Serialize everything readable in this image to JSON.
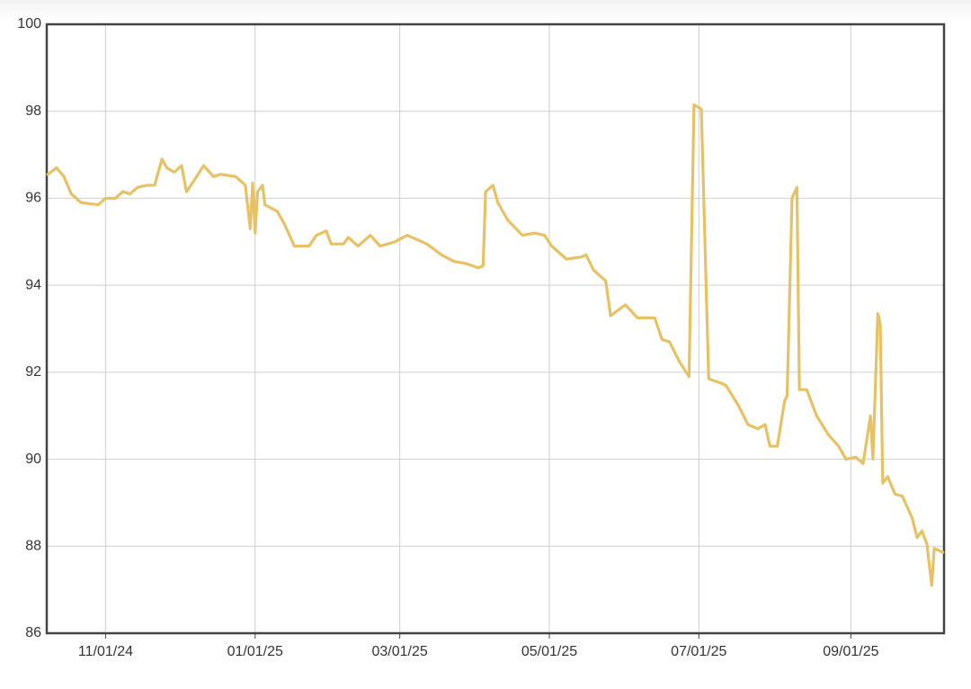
{
  "chart_data": {
    "type": "line",
    "x": [
      "2024-10-08",
      "2024-10-12",
      "2024-10-15",
      "2024-10-18",
      "2024-10-22",
      "2024-10-29",
      "2024-11-01",
      "2024-11-05",
      "2024-11-08",
      "2024-11-11",
      "2024-11-14",
      "2024-11-18",
      "2024-11-21",
      "2024-11-24",
      "2024-11-26",
      "2024-11-29",
      "2024-12-02",
      "2024-12-04",
      "2024-12-07",
      "2024-12-11",
      "2024-12-15",
      "2024-12-18",
      "2024-12-24",
      "2024-12-28",
      "2024-12-30",
      "2024-12-31",
      "2025-01-01",
      "2025-01-02",
      "2025-01-04",
      "2025-01-05",
      "2025-01-10",
      "2025-01-13",
      "2025-01-17",
      "2025-01-23",
      "2025-01-26",
      "2025-01-30",
      "2025-02-01",
      "2025-02-06",
      "2025-02-08",
      "2025-02-12",
      "2025-02-17",
      "2025-02-21",
      "2025-02-27",
      "2025-03-04",
      "2025-03-08",
      "2025-03-12",
      "2025-03-18",
      "2025-03-23",
      "2025-03-28",
      "2025-04-02",
      "2025-04-04",
      "2025-04-05",
      "2025-04-08",
      "2025-04-10",
      "2025-04-14",
      "2025-04-20",
      "2025-04-25",
      "2025-04-29",
      "2025-05-02",
      "2025-05-08",
      "2025-05-14",
      "2025-05-16",
      "2025-05-19",
      "2025-05-24",
      "2025-05-26",
      "2025-06-01",
      "2025-06-06",
      "2025-06-13",
      "2025-06-16",
      "2025-06-19",
      "2025-06-23",
      "2025-06-27",
      "2025-06-29",
      "2025-07-02",
      "2025-07-05",
      "2025-07-10",
      "2025-07-12",
      "2025-07-17",
      "2025-07-21",
      "2025-07-25",
      "2025-07-28",
      "2025-07-30",
      "2025-08-02",
      "2025-08-05",
      "2025-08-06",
      "2025-08-08",
      "2025-08-10",
      "2025-08-11",
      "2025-08-14",
      "2025-08-18",
      "2025-08-23",
      "2025-08-27",
      "2025-08-30",
      "2025-09-03",
      "2025-09-06",
      "2025-09-09",
      "2025-09-10",
      "2025-09-12",
      "2025-09-13",
      "2025-09-14",
      "2025-09-16",
      "2025-09-19",
      "2025-09-22",
      "2025-09-26",
      "2025-09-28",
      "2025-09-30",
      "2025-10-02",
      "2025-10-04",
      "2025-10-05",
      "2025-10-07",
      "2025-10-09"
    ],
    "values": [
      96.53,
      96.7,
      96.5,
      96.1,
      95.9,
      95.85,
      96.0,
      96.0,
      96.15,
      96.1,
      96.25,
      96.3,
      96.3,
      96.9,
      96.7,
      96.6,
      96.75,
      96.15,
      96.4,
      96.75,
      96.5,
      96.55,
      96.5,
      96.3,
      95.3,
      96.35,
      95.2,
      96.15,
      96.3,
      95.85,
      95.7,
      95.4,
      94.9,
      94.9,
      95.15,
      95.25,
      94.95,
      94.95,
      95.1,
      94.9,
      95.15,
      94.9,
      95.0,
      95.15,
      95.05,
      94.95,
      94.7,
      94.55,
      94.5,
      94.4,
      94.45,
      96.15,
      96.3,
      95.9,
      95.5,
      95.15,
      95.2,
      95.15,
      94.9,
      94.6,
      94.65,
      94.7,
      94.35,
      94.1,
      93.3,
      93.55,
      93.25,
      93.25,
      92.75,
      92.7,
      92.25,
      91.9,
      98.15,
      98.05,
      91.85,
      91.75,
      91.7,
      91.25,
      90.8,
      90.7,
      90.8,
      90.3,
      90.3,
      91.35,
      91.45,
      96.0,
      96.25,
      91.6,
      91.6,
      91.0,
      90.55,
      90.3,
      90.0,
      90.05,
      89.9,
      91.0,
      90.0,
      93.35,
      93.1,
      89.45,
      89.6,
      89.2,
      89.15,
      88.65,
      88.2,
      88.35,
      88.05,
      87.1,
      87.95,
      87.9,
      87.85
    ],
    "color": "#e6c264",
    "xlim": [
      "2024-10-08",
      "2025-10-09"
    ],
    "xticks": [
      {
        "value": "2024-11-01",
        "label": "11/01/24"
      },
      {
        "value": "2025-01-01",
        "label": "01/01/25"
      },
      {
        "value": "2025-03-01",
        "label": "03/01/25"
      },
      {
        "value": "2025-05-01",
        "label": "05/01/25"
      },
      {
        "value": "2025-07-01",
        "label": "07/01/25"
      },
      {
        "value": "2025-09-01",
        "label": "09/01/25"
      }
    ],
    "ylim": [
      86,
      100
    ],
    "yticks": [
      86,
      88,
      90,
      92,
      94,
      96,
      98,
      100
    ],
    "grid": true
  }
}
